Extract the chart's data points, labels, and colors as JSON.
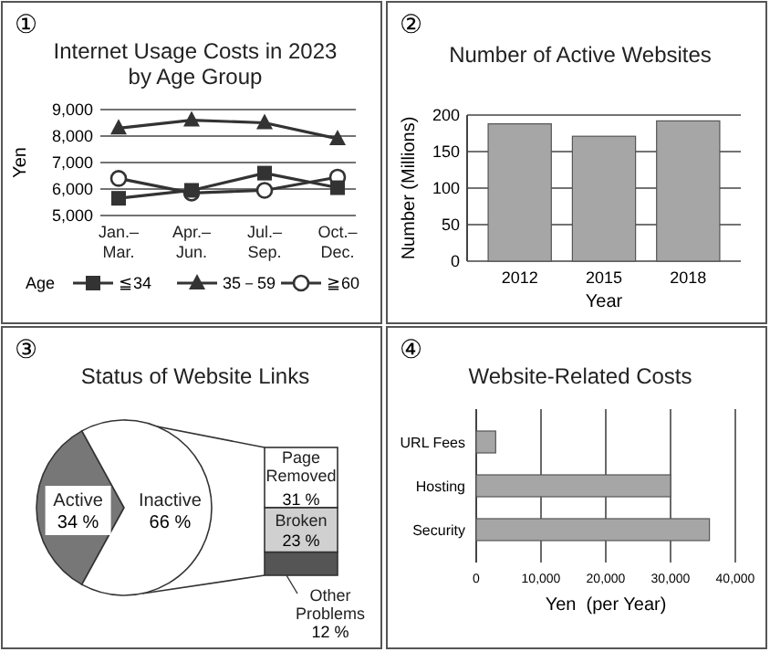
{
  "chart_data": [
    {
      "type": "line",
      "title": "Internet Usage Costs in 2023\nby Age Group",
      "ylabel": "Yen",
      "annotations": [
        "①"
      ],
      "categories": [
        "Jan.–\nMar.",
        "Apr.–\nJun.",
        "Jul.–\nSep.",
        "Oct.–\nDec."
      ],
      "series": [
        {
          "name": "≦34",
          "color": "#333333",
          "marker": "square",
          "values": [
            5650,
            5950,
            6600,
            6050
          ]
        },
        {
          "name": "35－59",
          "color": "#333333",
          "marker": "triangle",
          "values": [
            8300,
            8600,
            8500,
            7900
          ]
        },
        {
          "name": "≧60",
          "color": "#333333",
          "marker": "circle",
          "values": [
            6400,
            5850,
            5950,
            6450
          ]
        }
      ],
      "ylim": [
        5000,
        9000
      ],
      "yticks": [
        {
          "value": 5000,
          "label": "5,000"
        },
        {
          "value": 6000,
          "label": "6,000"
        },
        {
          "value": 7000,
          "label": "7,000"
        },
        {
          "value": 8000,
          "label": "8,000"
        },
        {
          "value": 9000,
          "label": "9,000"
        }
      ],
      "grid": "y",
      "legend": "bottom",
      "legend_title": "Age"
    },
    {
      "type": "bar",
      "title": "Number of Active Websites",
      "xlabel": "Year",
      "ylabel": "Number (Millions)",
      "annotations": [
        "②"
      ],
      "categories": [
        "2012",
        "2015",
        "2018"
      ],
      "values": [
        188,
        171,
        192
      ],
      "color": "#a6a6a6",
      "ylim": [
        0,
        200
      ],
      "yticks": [
        0,
        50,
        100,
        150,
        200
      ],
      "grid": "y"
    },
    {
      "type": "pie",
      "title": "Status of Website Links",
      "annotations": [
        "③"
      ],
      "categories": [
        "Active",
        "Inactive"
      ],
      "values": [
        34,
        66
      ],
      "value_labels": [
        "34 %",
        "66 %"
      ],
      "colors": [
        "#777777",
        "#ffffff"
      ]
    },
    {
      "type": "bar",
      "stacked": true,
      "categories": [
        null
      ],
      "series": [
        {
          "name": "Other Problems",
          "color": "#555555",
          "values": [
            12
          ],
          "value_labels": [
            "12 %"
          ]
        },
        {
          "name": "Broken",
          "color": "#d0d0d0",
          "values": [
            23
          ],
          "value_labels": [
            "23 %"
          ]
        },
        {
          "name": "Page Removed",
          "color": "#ffffff",
          "values": [
            31
          ],
          "value_labels": [
            "31 %"
          ]
        }
      ]
    },
    {
      "type": "bar",
      "orientation": "horizontal",
      "title": "Website-Related Costs",
      "xlabel": "Yen  (per Year)",
      "annotations": [
        "④"
      ],
      "categories": [
        "URL Fees",
        "Hosting",
        "Security"
      ],
      "values": [
        3000,
        30000,
        36000
      ],
      "color": "#a6a6a6",
      "xlim": [
        0,
        40000
      ],
      "xticks": [
        0,
        {
          "value": 10000,
          "label": "10,000"
        },
        {
          "value": 20000,
          "label": "20,000"
        },
        {
          "value": 30000,
          "label": "30,000"
        },
        {
          "value": 40000,
          "label": "40,000"
        }
      ],
      "grid": "x"
    }
  ]
}
